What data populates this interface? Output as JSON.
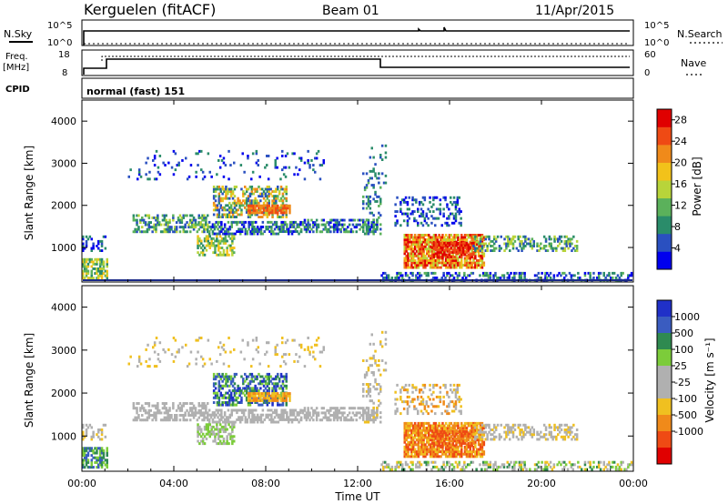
{
  "header": {
    "station": "Kerguelen (fitACF)",
    "beam": "Beam 01",
    "date": "11/Apr/2015"
  },
  "panels": {
    "sky": {
      "left_label": "N.Sky",
      "left_ticks": [
        "10^5",
        "10^0"
      ],
      "right_ticks": [
        "10^5",
        "10^0"
      ],
      "right_label": "N.Search"
    },
    "freq": {
      "left_label_1": "Freq.",
      "left_label_2": "[MHz]",
      "left_ticks": [
        "18",
        "8"
      ],
      "right_ticks": [
        "60",
        "0"
      ],
      "right_label": "Nave"
    },
    "cpid": {
      "label": "CPID",
      "text": "normal (fast) 151"
    }
  },
  "colors": {
    "power_scale": [
      "#0000ee",
      "#2a50c0",
      "#2a8c6a",
      "#5bb15b",
      "#b8d43a",
      "#f2c21a",
      "#f08a1a",
      "#ef4a14",
      "#e00000"
    ],
    "velocity_scale": [
      "#2030c8",
      "#3a5cc0",
      "#2f8a50",
      "#7ccc3a",
      "#b0b0b0",
      "#b0b0b0",
      "#f0c020",
      "#f08a1a",
      "#ef4a14",
      "#e00000"
    ]
  },
  "chart_data": [
    {
      "type": "heatmap",
      "ylabel": "Slant Range [km]",
      "ylim": [
        180,
        4500
      ],
      "yticks": [
        "1000",
        "2000",
        "3000",
        "4000"
      ],
      "xlim_hours": [
        0,
        24
      ],
      "colorbar_label": "Power [dB]",
      "colorbar_ticks": [
        "4",
        "8",
        "12",
        "16",
        "20",
        "24",
        "28"
      ],
      "colorbar_range": [
        0,
        30
      ]
    },
    {
      "type": "heatmap",
      "ylabel": "Slant Range [km]",
      "ylim": [
        180,
        4500
      ],
      "yticks": [
        "1000",
        "2000",
        "3000",
        "4000"
      ],
      "xlabel": "Time UT",
      "xtick_labels": [
        "00:00",
        "04:00",
        "08:00",
        "12:00",
        "16:00",
        "20:00",
        "00:00"
      ],
      "colorbar_label": "Velocity [m s⁻¹]",
      "colorbar_ticks": [
        "1000",
        "500",
        "100",
        "25",
        "-25",
        "-100",
        "-500",
        "-1000"
      ]
    }
  ]
}
